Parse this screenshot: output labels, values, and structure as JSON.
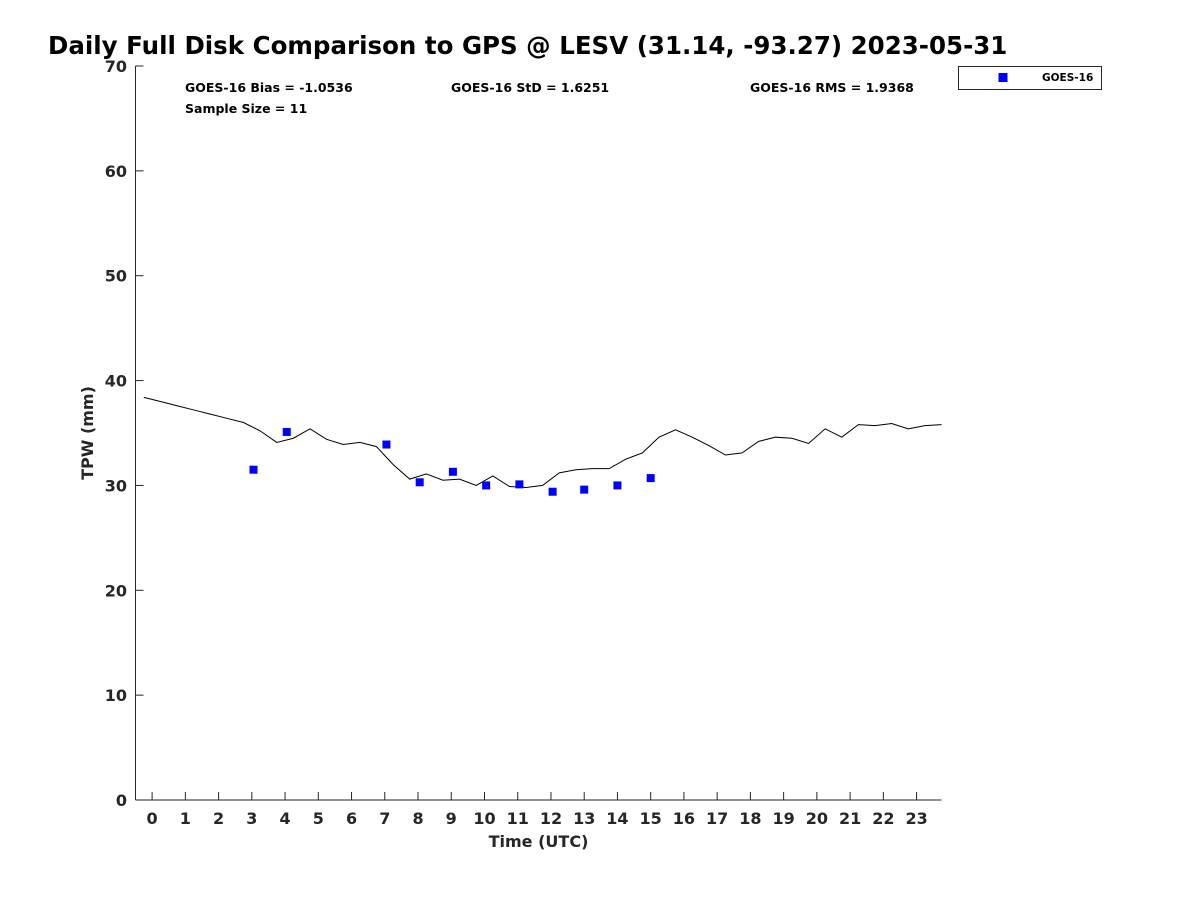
{
  "chart_data": {
    "type": "scatter",
    "title": "Daily Full Disk Comparison to GPS @ LESV (31.14, -93.27) 2023-05-31",
    "xlabel": "Time (UTC)",
    "ylabel": "TPW (mm)",
    "xlim": [
      -0.5,
      23.75
    ],
    "ylim": [
      0,
      70
    ],
    "x_ticks": [
      0,
      1,
      2,
      3,
      4,
      5,
      6,
      7,
      8,
      9,
      10,
      11,
      12,
      13,
      14,
      15,
      16,
      17,
      18,
      19,
      20,
      21,
      22,
      23
    ],
    "x_tick_labels": [
      "0",
      "1",
      "2",
      "3",
      "4",
      "5",
      "6",
      "7",
      "8",
      "9",
      "10",
      "11",
      "12",
      "13",
      "14",
      "15",
      "16",
      "17",
      "18",
      "19",
      "20",
      "21",
      "22",
      "23"
    ],
    "y_ticks": [
      0,
      10,
      20,
      30,
      40,
      50,
      60,
      70
    ],
    "y_tick_labels": [
      "0",
      "10",
      "20",
      "30",
      "40",
      "50",
      "60",
      "70"
    ],
    "grid": false,
    "legend_position": "top-right outside",
    "stats": {
      "bias": "GOES-16 Bias = -1.0536",
      "std": "GOES-16 StD = 1.6251",
      "rms": "GOES-16 RMS = 1.9368",
      "sample_size": "Sample Size = 11"
    },
    "series": [
      {
        "name": "GOES-16",
        "kind": "scatter",
        "color": "#0000ff",
        "x": [
          3.05,
          4.05,
          7.05,
          8.05,
          9.05,
          10.05,
          11.05,
          12.05,
          13.0,
          14.0,
          15.0
        ],
        "y": [
          31.5,
          35.1,
          33.9,
          30.3,
          31.3,
          30.0,
          30.1,
          29.4,
          29.6,
          30.0,
          30.7
        ]
      },
      {
        "kind": "line",
        "color": "#000000",
        "x": [
          -0.25,
          0.25,
          0.75,
          1.25,
          1.75,
          2.25,
          2.75,
          3.25,
          3.75,
          4.25,
          4.75,
          5.25,
          5.75,
          6.25,
          6.75,
          7.25,
          7.75,
          8.25,
          8.75,
          9.25,
          9.75,
          10.25,
          10.75,
          11.25,
          11.75,
          12.25,
          12.75,
          13.25,
          13.75,
          14.25,
          14.75,
          15.25,
          15.75,
          16.25,
          16.75,
          17.25,
          17.75,
          18.25,
          18.75,
          19.25,
          19.75,
          20.25,
          20.75,
          21.25,
          21.75,
          22.25,
          22.75,
          23.25,
          23.75
        ],
        "y": [
          38.4,
          38.0,
          37.6,
          37.2,
          36.8,
          36.4,
          36.0,
          35.2,
          34.1,
          34.5,
          35.4,
          34.4,
          33.9,
          34.1,
          33.7,
          32.0,
          30.6,
          31.1,
          30.5,
          30.6,
          30.0,
          30.9,
          29.9,
          29.8,
          30.0,
          31.2,
          31.5,
          31.6,
          31.6,
          32.5,
          33.1,
          34.6,
          35.3,
          34.6,
          33.8,
          32.9,
          33.1,
          34.2,
          34.6,
          34.5,
          34.0,
          35.4,
          34.6,
          35.8,
          35.7,
          35.9,
          35.4,
          35.7,
          35.8
        ]
      }
    ]
  }
}
